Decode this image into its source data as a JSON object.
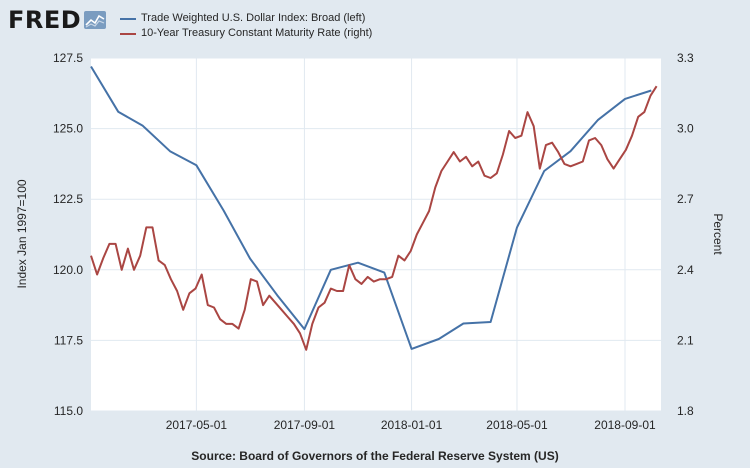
{
  "logo": {
    "text": "FRED",
    "icon": "fred-graph-icon"
  },
  "source": "Source: Board of Governors of the Federal Reserve System (US)",
  "colors": {
    "background": "#e1e9f0",
    "plot_background": "#ffffff",
    "grid": "#e1e9f0",
    "series_left": "#4572a7",
    "series_right": "#aa4643"
  },
  "chart_data": {
    "type": "line",
    "legend_placement": "top",
    "grid": true,
    "x_range": [
      "2017-01-01",
      "2018-10-12"
    ],
    "x_ticks": [
      "2017-05-01",
      "2017-09-01",
      "2018-01-01",
      "2018-05-01",
      "2018-09-01"
    ],
    "y_left": {
      "label": "Index Jan 1997=100",
      "range": [
        115.0,
        127.5
      ],
      "ticks": [
        "115.0",
        "117.5",
        "120.0",
        "122.5",
        "125.0",
        "127.5"
      ]
    },
    "y_right": {
      "label": "Percent",
      "range": [
        1.8,
        3.3
      ],
      "ticks": [
        "1.8",
        "2.1",
        "2.4",
        "2.7",
        "3.0",
        "3.3"
      ]
    },
    "series": [
      {
        "name": "Trade Weighted U.S. Dollar Index: Broad (left)",
        "axis": "left",
        "x": [
          "2017-01-01",
          "2017-02-01",
          "2017-03-01",
          "2017-04-01",
          "2017-05-01",
          "2017-06-01",
          "2017-07-01",
          "2017-08-01",
          "2017-09-01",
          "2017-10-01",
          "2017-11-01",
          "2017-12-01",
          "2018-01-01",
          "2018-02-01",
          "2018-03-01",
          "2018-04-01",
          "2018-05-01",
          "2018-06-01",
          "2018-07-01",
          "2018-08-01",
          "2018-09-01",
          "2018-10-01"
        ],
        "y": [
          127.2,
          125.6,
          125.1,
          124.2,
          123.7,
          122.1,
          120.4,
          119.1,
          117.9,
          120.0,
          120.25,
          119.9,
          117.2,
          117.55,
          118.1,
          118.15,
          121.5,
          123.5,
          124.2,
          125.3,
          126.05,
          126.35
        ]
      },
      {
        "name": "10-Year Treasury Constant Maturity Rate (right)",
        "axis": "right",
        "x": [
          "2017-01-01",
          "2017-01-08",
          "2017-01-15",
          "2017-01-22",
          "2017-01-29",
          "2017-02-05",
          "2017-02-12",
          "2017-02-19",
          "2017-02-26",
          "2017-03-05",
          "2017-03-12",
          "2017-03-19",
          "2017-03-26",
          "2017-04-02",
          "2017-04-09",
          "2017-04-16",
          "2017-04-23",
          "2017-04-30",
          "2017-05-07",
          "2017-05-14",
          "2017-05-21",
          "2017-05-28",
          "2017-06-04",
          "2017-06-11",
          "2017-06-18",
          "2017-06-25",
          "2017-07-02",
          "2017-07-09",
          "2017-07-16",
          "2017-07-23",
          "2017-07-30",
          "2017-08-06",
          "2017-08-13",
          "2017-08-20",
          "2017-08-27",
          "2017-09-03",
          "2017-09-10",
          "2017-09-17",
          "2017-09-24",
          "2017-10-01",
          "2017-10-08",
          "2017-10-15",
          "2017-10-22",
          "2017-10-29",
          "2017-11-05",
          "2017-11-12",
          "2017-11-19",
          "2017-11-26",
          "2017-12-03",
          "2017-12-10",
          "2017-12-17",
          "2017-12-24",
          "2017-12-31",
          "2018-01-07",
          "2018-01-14",
          "2018-01-21",
          "2018-01-28",
          "2018-02-04",
          "2018-02-11",
          "2018-02-18",
          "2018-02-25",
          "2018-03-04",
          "2018-03-11",
          "2018-03-18",
          "2018-03-25",
          "2018-04-01",
          "2018-04-08",
          "2018-04-15",
          "2018-04-22",
          "2018-04-29",
          "2018-05-06",
          "2018-05-13",
          "2018-05-20",
          "2018-05-27",
          "2018-06-03",
          "2018-06-10",
          "2018-06-17",
          "2018-06-24",
          "2018-07-01",
          "2018-07-08",
          "2018-07-15",
          "2018-07-22",
          "2018-07-29",
          "2018-08-05",
          "2018-08-12",
          "2018-08-19",
          "2018-08-26",
          "2018-09-02",
          "2018-09-09",
          "2018-09-16",
          "2018-09-23",
          "2018-09-30",
          "2018-10-07"
        ],
        "y": [
          2.46,
          2.38,
          2.45,
          2.51,
          2.51,
          2.4,
          2.49,
          2.4,
          2.46,
          2.58,
          2.58,
          2.44,
          2.42,
          2.36,
          2.31,
          2.23,
          2.3,
          2.32,
          2.38,
          2.25,
          2.24,
          2.19,
          2.17,
          2.17,
          2.15,
          2.23,
          2.36,
          2.35,
          2.25,
          2.29,
          2.26,
          2.23,
          2.2,
          2.17,
          2.13,
          2.06,
          2.17,
          2.24,
          2.26,
          2.32,
          2.31,
          2.31,
          2.42,
          2.36,
          2.34,
          2.37,
          2.35,
          2.36,
          2.36,
          2.37,
          2.46,
          2.44,
          2.48,
          2.55,
          2.6,
          2.65,
          2.75,
          2.82,
          2.86,
          2.9,
          2.86,
          2.88,
          2.84,
          2.86,
          2.8,
          2.79,
          2.81,
          2.89,
          2.99,
          2.96,
          2.97,
          3.07,
          3.01,
          2.83,
          2.93,
          2.94,
          2.9,
          2.85,
          2.84,
          2.85,
          2.86,
          2.95,
          2.96,
          2.93,
          2.87,
          2.83,
          2.87,
          2.91,
          2.97,
          3.05,
          3.07,
          3.14,
          3.18
        ]
      }
    ]
  }
}
